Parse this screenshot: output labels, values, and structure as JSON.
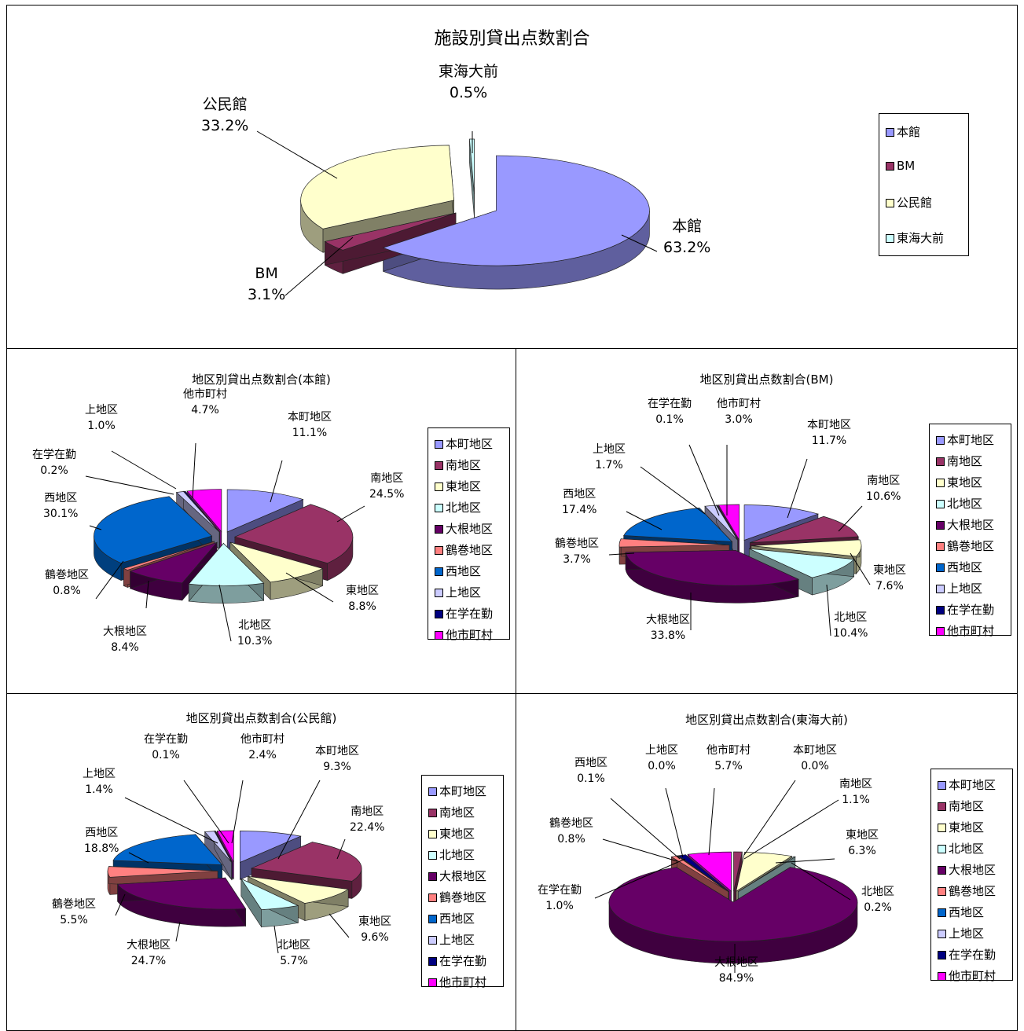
{
  "chart_data": [
    {
      "id": "facility",
      "type": "pie",
      "title": "施設別貸出点数割合",
      "categories": [
        "本館",
        "BM",
        "公民館",
        "東海大前"
      ],
      "values": [
        63.2,
        3.1,
        33.2,
        0.5
      ],
      "colors": [
        "#9999ff",
        "#993366",
        "#ffffcc",
        "#ccffff"
      ],
      "exploded": true,
      "three_d": true,
      "legend": "right"
    },
    {
      "id": "honkan",
      "type": "pie",
      "title": "地区別貸出点数割合(本館)",
      "categories": [
        "本町地区",
        "南地区",
        "東地区",
        "北地区",
        "大根地区",
        "鶴巻地区",
        "西地区",
        "上地区",
        "在学在勤",
        "他市町村"
      ],
      "values": [
        11.1,
        24.5,
        8.8,
        10.3,
        8.4,
        0.8,
        30.1,
        1.0,
        0.2,
        4.7
      ],
      "colors": [
        "#9999ff",
        "#993366",
        "#ffffcc",
        "#ccffff",
        "#660066",
        "#ff8080",
        "#0066cc",
        "#ccccff",
        "#000080",
        "#ff00ff"
      ],
      "exploded": true,
      "three_d": true,
      "legend": "right"
    },
    {
      "id": "bm",
      "type": "pie",
      "title": "地区別貸出点数割合(BM)",
      "categories": [
        "本町地区",
        "南地区",
        "東地区",
        "北地区",
        "大根地区",
        "鶴巻地区",
        "西地区",
        "上地区",
        "在学在勤",
        "他市町村"
      ],
      "values": [
        11.7,
        10.6,
        7.6,
        10.4,
        33.8,
        3.7,
        17.4,
        1.7,
        0.1,
        3.0
      ],
      "colors": [
        "#9999ff",
        "#993366",
        "#ffffcc",
        "#ccffff",
        "#660066",
        "#ff8080",
        "#0066cc",
        "#ccccff",
        "#000080",
        "#ff00ff"
      ],
      "exploded": true,
      "three_d": true,
      "legend": "right"
    },
    {
      "id": "kominkan",
      "type": "pie",
      "title": "地区別貸出点数割合(公民館)",
      "categories": [
        "本町地区",
        "南地区",
        "東地区",
        "北地区",
        "大根地区",
        "鶴巻地区",
        "西地区",
        "上地区",
        "在学在勤",
        "他市町村"
      ],
      "values": [
        9.3,
        22.4,
        9.6,
        5.7,
        24.7,
        5.5,
        18.8,
        1.4,
        0.1,
        2.4
      ],
      "colors": [
        "#9999ff",
        "#993366",
        "#ffffcc",
        "#ccffff",
        "#660066",
        "#ff8080",
        "#0066cc",
        "#ccccff",
        "#000080",
        "#ff00ff"
      ],
      "exploded": true,
      "three_d": true,
      "legend": "right"
    },
    {
      "id": "tokaidai",
      "type": "pie",
      "title": "地区別貸出点数割合(東海大前)",
      "categories": [
        "本町地区",
        "南地区",
        "東地区",
        "北地区",
        "大根地区",
        "鶴巻地区",
        "西地区",
        "上地区",
        "在学在勤",
        "他市町村"
      ],
      "values": [
        0.0,
        1.1,
        6.3,
        0.2,
        84.9,
        0.8,
        0.1,
        0.0,
        1.0,
        5.7
      ],
      "colors": [
        "#9999ff",
        "#993366",
        "#ffffcc",
        "#ccffff",
        "#660066",
        "#ff8080",
        "#0066cc",
        "#ccccff",
        "#000080",
        "#ff00ff"
      ],
      "exploded": true,
      "three_d": true,
      "legend": "right"
    }
  ]
}
